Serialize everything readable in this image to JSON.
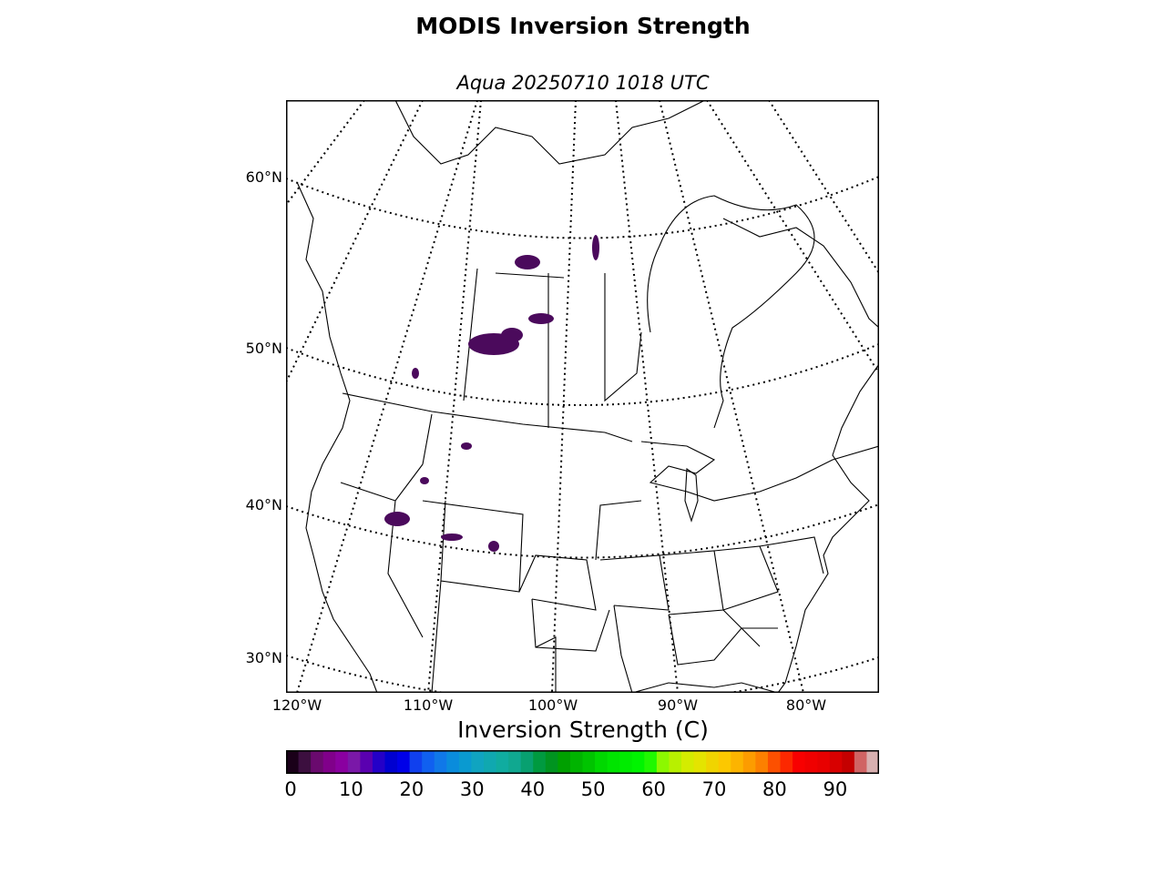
{
  "figure": {
    "title": "MODIS Inversion Strength",
    "subtitle": "Aqua 20250710 1018 UTC"
  },
  "map": {
    "projection": "lambert-conformal",
    "lat_labels": [
      "60°N",
      "50°N",
      "40°N",
      "30°N"
    ],
    "lon_labels": [
      "120°W",
      "110°W",
      "100°W",
      "90°W",
      "80°W"
    ],
    "data_color": "#4b0a5c"
  },
  "colorbar": {
    "label": "Inversion Strength (C)",
    "min": 0,
    "max": 98,
    "ticks": [
      "0",
      "10",
      "20",
      "30",
      "40",
      "50",
      "60",
      "70",
      "80",
      "90"
    ],
    "colors": [
      "#1a0019",
      "#3c0f3f",
      "#6a0a6e",
      "#80008a",
      "#8a00a0",
      "#7a18a8",
      "#5a00b0",
      "#2400c8",
      "#0000d0",
      "#0000e8",
      "#1040ee",
      "#1060f0",
      "#1078e8",
      "#0a8cdc",
      "#0a9ad0",
      "#10a4c0",
      "#10a8b0",
      "#10aca0",
      "#10a890",
      "#08a070",
      "#009a40",
      "#009420",
      "#00a000",
      "#00b400",
      "#00c400",
      "#00d800",
      "#00e400",
      "#00ec00",
      "#00f400",
      "#20f800",
      "#8cf800",
      "#b8f000",
      "#d4ec00",
      "#e4e400",
      "#f0d400",
      "#fcc800",
      "#fcb400",
      "#fc9c00",
      "#fc8000",
      "#fc5000",
      "#fc2800",
      "#f80000",
      "#f00000",
      "#e80000",
      "#d80000",
      "#c40000",
      "#d06464",
      "#d8b0b0"
    ]
  }
}
